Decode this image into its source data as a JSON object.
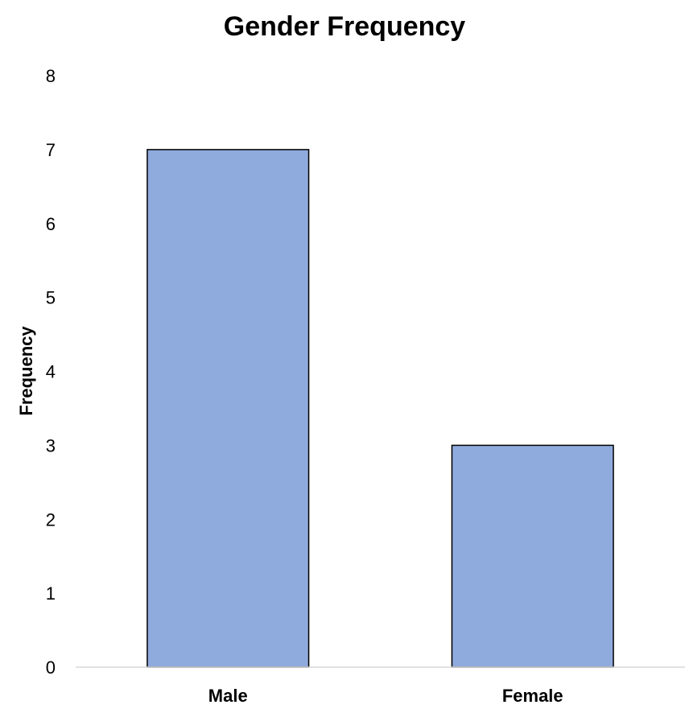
{
  "chart_data": {
    "type": "bar",
    "title": "Gender Frequency",
    "xlabel": "",
    "ylabel": "Frequency",
    "categories": [
      "Male",
      "Female"
    ],
    "values": [
      7,
      3
    ],
    "ylim": [
      0,
      8
    ],
    "yticks": [
      "0",
      "1",
      "2",
      "3",
      "4",
      "5",
      "6",
      "7",
      "8"
    ],
    "grid": false,
    "legend": "none",
    "colors": {
      "bar_fill": "#8faadc",
      "bar_stroke": "#000000",
      "axis": "#d9d9d9"
    }
  }
}
